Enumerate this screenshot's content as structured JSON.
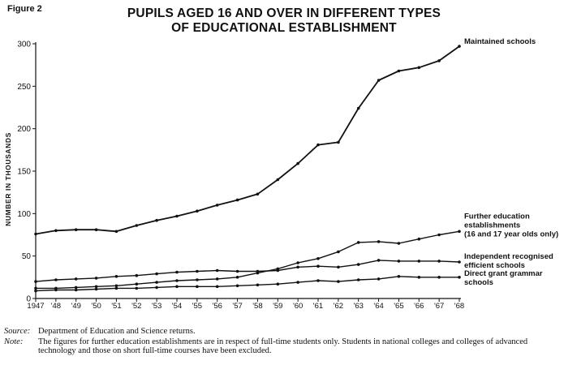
{
  "figure_label": "Figure 2",
  "title_lines": [
    "PUPILS AGED 16 AND OVER IN DIFFERENT TYPES",
    "OF EDUCATIONAL ESTABLISHMENT"
  ],
  "notes": [
    {
      "key": "Source:",
      "text": "Department of Education and Science returns."
    },
    {
      "key": "Note:",
      "text": "The figures for further education establishments are in respect of full-time students only. Students in national colleges and colleges of advanced technology and those on short full-time courses have been excluded."
    }
  ],
  "chart_data": {
    "type": "line",
    "ylabel": "NUMBER IN THOUSANDS",
    "xlabel": "",
    "ylim": [
      0,
      300
    ],
    "y_ticks": [
      0,
      50,
      100,
      150,
      200,
      250,
      300
    ],
    "x": [
      1947,
      1948,
      1949,
      1950,
      1951,
      1952,
      1953,
      1954,
      1955,
      1956,
      1957,
      1958,
      1959,
      1960,
      1961,
      1962,
      1963,
      1964,
      1965,
      1966,
      1967,
      1968
    ],
    "x_tick_labels": [
      "1947",
      "'48",
      "'49",
      "'50",
      "'51",
      "'52",
      "'53",
      "'54",
      "'55",
      "'56",
      "'57",
      "'58",
      "'59",
      "'60",
      "'61",
      "'62",
      "'63",
      "'64",
      "'65",
      "'66",
      "'67",
      "'68"
    ],
    "series": [
      {
        "name": "Maintained schools",
        "label_lines": [
          "Maintained schools"
        ],
        "values": [
          76,
          80,
          81,
          81,
          79,
          86,
          92,
          97,
          103,
          110,
          116,
          123,
          140,
          159,
          181,
          184,
          224,
          257,
          268,
          272,
          280,
          297
        ]
      },
      {
        "name": "Further education establishments (16 and 17 year olds only)",
        "label_lines": [
          "Further education",
          "establishments",
          "(16 and 17 year olds only)"
        ],
        "values": [
          12,
          12,
          13,
          14,
          15,
          17,
          19,
          21,
          22,
          23,
          25,
          30,
          35,
          42,
          47,
          55,
          66,
          67,
          65,
          70,
          75,
          79
        ]
      },
      {
        "name": "Independent recognised efficient schools",
        "label_lines": [
          "Independent recognised",
          "efficient schools"
        ],
        "values": [
          20,
          22,
          23,
          24,
          26,
          27,
          29,
          31,
          32,
          33,
          32,
          32,
          33,
          37,
          38,
          37,
          40,
          45,
          44,
          44,
          44,
          43
        ]
      },
      {
        "name": "Direct grant grammar schools",
        "label_lines": [
          "Direct grant grammar",
          "schools"
        ],
        "values": [
          9,
          10,
          10,
          11,
          12,
          12,
          13,
          14,
          14,
          14,
          15,
          16,
          17,
          19,
          21,
          20,
          22,
          23,
          26,
          25,
          25,
          25
        ]
      }
    ]
  }
}
